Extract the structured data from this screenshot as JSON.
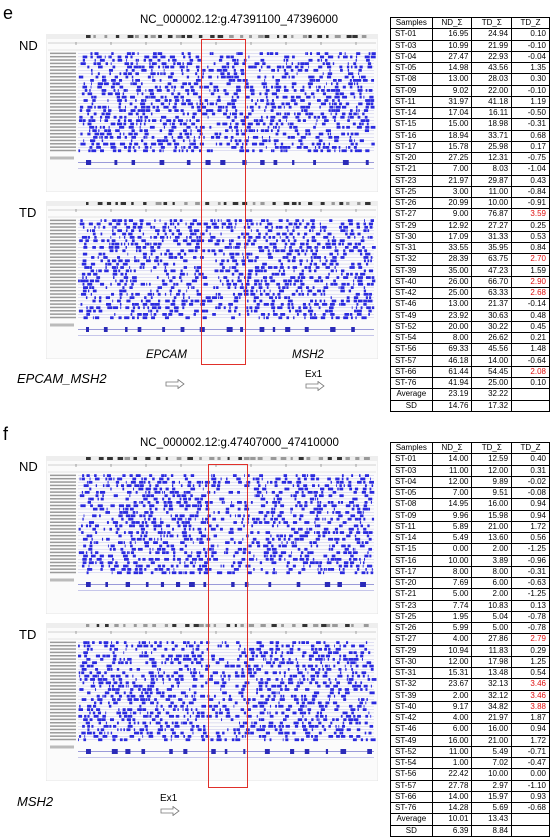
{
  "panel_e": {
    "letter": "e",
    "coordinate": "NC_000002.12:g.47391100_47396000",
    "track_nd": "ND",
    "track_td": "TD",
    "gene1": "EPCAM",
    "gene2": "MSH2",
    "bottom_label": "EPCAM_MSH2",
    "exon": "Ex1",
    "table": {
      "headers": [
        "Samples",
        "ND_Σ",
        "TD_Σ",
        "TD_Z"
      ],
      "rows": [
        {
          "s": "ST-01",
          "nd": "16.95",
          "td": "24.94",
          "z": "0.10",
          "hl": false
        },
        {
          "s": "ST-03",
          "nd": "10.99",
          "td": "21.99",
          "z": "-0.10",
          "hl": false
        },
        {
          "s": "ST-04",
          "nd": "27.47",
          "td": "22.93",
          "z": "-0.04",
          "hl": false
        },
        {
          "s": "ST-05",
          "nd": "14.98",
          "td": "43.56",
          "z": "1.35",
          "hl": false
        },
        {
          "s": "ST-08",
          "nd": "13.00",
          "td": "28.03",
          "z": "0.30",
          "hl": false
        },
        {
          "s": "ST-09",
          "nd": "9.02",
          "td": "22.00",
          "z": "-0.10",
          "hl": false
        },
        {
          "s": "ST-11",
          "nd": "31.97",
          "td": "41.18",
          "z": "1.19",
          "hl": false
        },
        {
          "s": "ST-14",
          "nd": "17.04",
          "td": "16.11",
          "z": "-0.50",
          "hl": false
        },
        {
          "s": "ST-15",
          "nd": "15.00",
          "td": "18.98",
          "z": "-0.31",
          "hl": false
        },
        {
          "s": "ST-16",
          "nd": "18.94",
          "td": "33.71",
          "z": "0.68",
          "hl": false
        },
        {
          "s": "ST-17",
          "nd": "15.78",
          "td": "25.98",
          "z": "0.17",
          "hl": false
        },
        {
          "s": "ST-20",
          "nd": "27.25",
          "td": "12.31",
          "z": "-0.75",
          "hl": false
        },
        {
          "s": "ST-21",
          "nd": "7.00",
          "td": "8.03",
          "z": "-1.04",
          "hl": false
        },
        {
          "s": "ST-23",
          "nd": "21.97",
          "td": "29.87",
          "z": "0.43",
          "hl": false
        },
        {
          "s": "ST-25",
          "nd": "3.00",
          "td": "11.00",
          "z": "-0.84",
          "hl": false
        },
        {
          "s": "ST-26",
          "nd": "20.99",
          "td": "10.00",
          "z": "-0.91",
          "hl": false
        },
        {
          "s": "ST-27",
          "nd": "9.00",
          "td": "76.87",
          "z": "3.59",
          "hl": true
        },
        {
          "s": "ST-29",
          "nd": "12.92",
          "td": "27.27",
          "z": "0.25",
          "hl": false
        },
        {
          "s": "ST-30",
          "nd": "17.09",
          "td": "31.33",
          "z": "0.53",
          "hl": false
        },
        {
          "s": "ST-31",
          "nd": "33.55",
          "td": "35.95",
          "z": "0.84",
          "hl": false
        },
        {
          "s": "ST-32",
          "nd": "28.39",
          "td": "63.75",
          "z": "2.70",
          "hl": true
        },
        {
          "s": "ST-39",
          "nd": "35.00",
          "td": "47.23",
          "z": "1.59",
          "hl": false
        },
        {
          "s": "ST-40",
          "nd": "26.00",
          "td": "66.70",
          "z": "2.90",
          "hl": true
        },
        {
          "s": "ST-42",
          "nd": "25.00",
          "td": "63.33",
          "z": "2.68",
          "hl": true
        },
        {
          "s": "ST-46",
          "nd": "13.00",
          "td": "21.37",
          "z": "-0.14",
          "hl": false
        },
        {
          "s": "ST-49",
          "nd": "23.92",
          "td": "30.63",
          "z": "0.48",
          "hl": false
        },
        {
          "s": "ST-52",
          "nd": "20.00",
          "td": "30.22",
          "z": "0.45",
          "hl": false
        },
        {
          "s": "ST-54",
          "nd": "8.00",
          "td": "26.62",
          "z": "0.21",
          "hl": false
        },
        {
          "s": "ST-56",
          "nd": "69.33",
          "td": "45.56",
          "z": "1.48",
          "hl": false
        },
        {
          "s": "ST-57",
          "nd": "46.18",
          "td": "14.00",
          "z": "-0.64",
          "hl": false
        },
        {
          "s": "ST-66",
          "nd": "61.44",
          "td": "54.45",
          "z": "2.08",
          "hl": true
        },
        {
          "s": "ST-76",
          "nd": "41.94",
          "td": "25.00",
          "z": "0.10",
          "hl": false
        }
      ],
      "avg_label": "Average",
      "avg_nd": "23.19",
      "avg_td": "32.22",
      "sd_label": "SD",
      "sd_nd": "14.76",
      "sd_td": "17.32"
    }
  },
  "panel_f": {
    "letter": "f",
    "coordinate": "NC_000002.12:g.47407000_47410000",
    "track_nd": "ND",
    "track_td": "TD",
    "bottom_label": "MSH2",
    "exon": "Ex1",
    "table": {
      "headers": [
        "Samples",
        "ND_Σ",
        "TD_Σ",
        "TD_Z"
      ],
      "rows": [
        {
          "s": "ST-01",
          "nd": "14.00",
          "td": "12.59",
          "z": "0.40",
          "hl": false
        },
        {
          "s": "ST-03",
          "nd": "11.00",
          "td": "12.00",
          "z": "0.31",
          "hl": false
        },
        {
          "s": "ST-04",
          "nd": "12.00",
          "td": "9.89",
          "z": "-0.02",
          "hl": false
        },
        {
          "s": "ST-05",
          "nd": "7.00",
          "td": "9.51",
          "z": "-0.08",
          "hl": false
        },
        {
          "s": "ST-08",
          "nd": "14.95",
          "td": "16.00",
          "z": "0.94",
          "hl": false
        },
        {
          "s": "ST-09",
          "nd": "9.96",
          "td": "15.98",
          "z": "0.94",
          "hl": false
        },
        {
          "s": "ST-11",
          "nd": "5.89",
          "td": "21.00",
          "z": "1.72",
          "hl": false
        },
        {
          "s": "ST-14",
          "nd": "5.49",
          "td": "13.60",
          "z": "0.56",
          "hl": false
        },
        {
          "s": "ST-15",
          "nd": "0.00",
          "td": "2.00",
          "z": "-1.25",
          "hl": false
        },
        {
          "s": "ST-16",
          "nd": "10.00",
          "td": "3.89",
          "z": "-0.96",
          "hl": false
        },
        {
          "s": "ST-17",
          "nd": "8.00",
          "td": "8.00",
          "z": "-0.31",
          "hl": false
        },
        {
          "s": "ST-20",
          "nd": "7.69",
          "td": "6.00",
          "z": "-0.63",
          "hl": false
        },
        {
          "s": "ST-21",
          "nd": "5.00",
          "td": "2.00",
          "z": "-1.25",
          "hl": false
        },
        {
          "s": "ST-23",
          "nd": "7.74",
          "td": "10.83",
          "z": "0.13",
          "hl": false
        },
        {
          "s": "ST-25",
          "nd": "1.95",
          "td": "5.04",
          "z": "-0.78",
          "hl": false
        },
        {
          "s": "ST-26",
          "nd": "5.99",
          "td": "5.00",
          "z": "-0.78",
          "hl": false
        },
        {
          "s": "ST-27",
          "nd": "4.00",
          "td": "27.86",
          "z": "2.79",
          "hl": true
        },
        {
          "s": "ST-29",
          "nd": "10.94",
          "td": "11.83",
          "z": "0.29",
          "hl": false
        },
        {
          "s": "ST-30",
          "nd": "12.00",
          "td": "17.98",
          "z": "1.25",
          "hl": false
        },
        {
          "s": "ST-31",
          "nd": "15.31",
          "td": "13.48",
          "z": "0.54",
          "hl": false
        },
        {
          "s": "ST-32",
          "nd": "23.67",
          "td": "32.13",
          "z": "3.46",
          "hl": true
        },
        {
          "s": "ST-39",
          "nd": "2.00",
          "td": "32.12",
          "z": "3.46",
          "hl": true
        },
        {
          "s": "ST-40",
          "nd": "9.17",
          "td": "34.82",
          "z": "3.88",
          "hl": true
        },
        {
          "s": "ST-42",
          "nd": "4.00",
          "td": "21.97",
          "z": "1.87",
          "hl": false
        },
        {
          "s": "ST-46",
          "nd": "6.00",
          "td": "16.00",
          "z": "0.94",
          "hl": false
        },
        {
          "s": "ST-49",
          "nd": "16.00",
          "td": "21.00",
          "z": "1.72",
          "hl": false
        },
        {
          "s": "ST-52",
          "nd": "11.00",
          "td": "5.49",
          "z": "-0.71",
          "hl": false
        },
        {
          "s": "ST-54",
          "nd": "1.00",
          "td": "7.02",
          "z": "-0.47",
          "hl": false
        },
        {
          "s": "ST-56",
          "nd": "22.42",
          "td": "10.00",
          "z": "0.00",
          "hl": false
        },
        {
          "s": "ST-57",
          "nd": "27.78",
          "td": "2.97",
          "z": "-1.10",
          "hl": false
        },
        {
          "s": "ST-66",
          "nd": "14.00",
          "td": "15.97",
          "z": "0.93",
          "hl": false
        },
        {
          "s": "ST-76",
          "nd": "14.28",
          "td": "5.69",
          "z": "-0.68",
          "hl": false
        }
      ],
      "avg_label": "Average",
      "avg_nd": "10.01",
      "avg_td": "13.43",
      "sd_label": "SD",
      "sd_nd": "6.39",
      "sd_td": "8.84"
    }
  },
  "colors": {
    "read_blue": "#2a2adf",
    "highlight_box": "#e0302a",
    "z_red": "#e01010"
  }
}
